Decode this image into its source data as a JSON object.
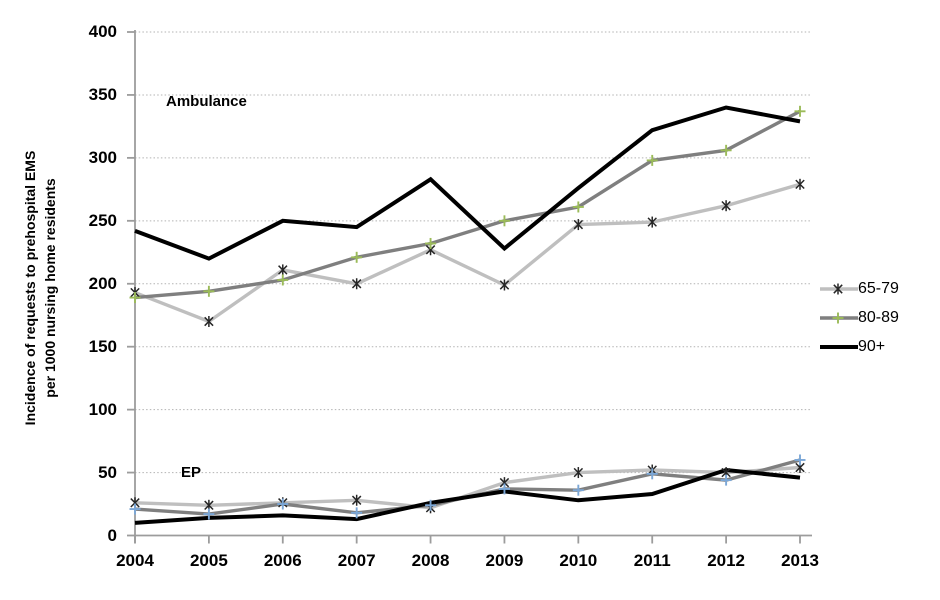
{
  "chart_data": {
    "type": "line",
    "title": "",
    "ylabel_line1": "Incidence of requests to prehospital EMS",
    "ylabel_line2": "per 1000 nursing home residents",
    "xlabel": "",
    "x_categories": [
      "2004",
      "2005",
      "2006",
      "2007",
      "2008",
      "2009",
      "2010",
      "2011",
      "2012",
      "2013"
    ],
    "ylim": [
      0,
      400
    ],
    "yticks": [
      0,
      50,
      100,
      150,
      200,
      250,
      300,
      350,
      400
    ],
    "grid": "horizontal-dotted",
    "legend_position": "right",
    "annotations": [
      {
        "text": "Ambulance",
        "meaning": "upper line cluster = ambulance requests"
      },
      {
        "text": "EP",
        "meaning": "lower line cluster = emergency physician requests"
      }
    ],
    "series": [
      {
        "id": "amb-65-79",
        "name": "65-79",
        "cluster": "Ambulance",
        "color": "#bfbfbf",
        "marker": "asterisk",
        "marker_color": "#262626",
        "values": [
          193,
          170,
          211,
          200,
          227,
          199,
          247,
          249,
          262,
          279
        ]
      },
      {
        "id": "amb-80-89",
        "name": "80-89",
        "cluster": "Ambulance",
        "color": "#7f7f7f",
        "marker": "plus",
        "marker_color": "#9bbb59",
        "values": [
          189,
          194,
          203,
          221,
          232,
          250,
          261,
          298,
          306,
          337
        ]
      },
      {
        "id": "amb-90plus",
        "name": "90+",
        "cluster": "Ambulance",
        "color": "#000000",
        "marker": "none",
        "marker_color": "",
        "values": [
          242,
          220,
          250,
          245,
          283,
          228,
          276,
          322,
          340,
          329
        ]
      },
      {
        "id": "ep-65-79",
        "name": "65-79",
        "cluster": "EP",
        "color": "#bfbfbf",
        "marker": "asterisk",
        "marker_color": "#262626",
        "values": [
          26,
          24,
          26,
          28,
          22,
          42,
          50,
          52,
          50,
          54
        ]
      },
      {
        "id": "ep-80-89",
        "name": "80-89",
        "cluster": "EP",
        "color": "#7f7f7f",
        "marker": "plus",
        "marker_color": "#7ba7d7",
        "values": [
          21,
          17,
          25,
          18,
          24,
          37,
          36,
          49,
          44,
          60
        ]
      },
      {
        "id": "ep-90plus",
        "name": "90+",
        "cluster": "EP",
        "color": "#000000",
        "marker": "none",
        "marker_color": "",
        "values": [
          10,
          14,
          16,
          13,
          26,
          35,
          28,
          33,
          52,
          46
        ]
      }
    ],
    "legend_entries": [
      {
        "label": "65-79",
        "series_id": "amb-65-79"
      },
      {
        "label": "80-89",
        "series_id": "amb-80-89"
      },
      {
        "label": "90+",
        "series_id": "amb-90plus"
      }
    ]
  }
}
